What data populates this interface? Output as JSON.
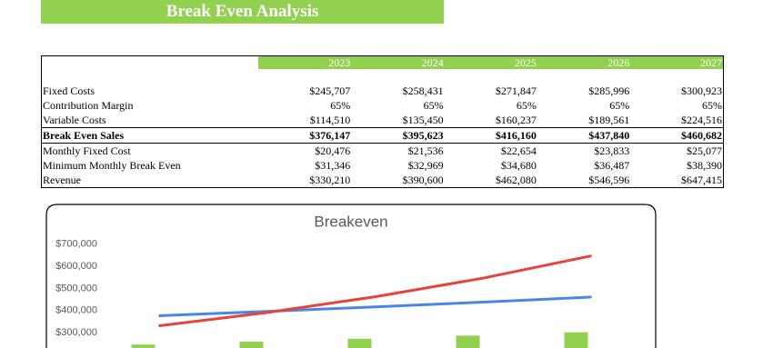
{
  "header": {
    "title": "Break Even Analysis"
  },
  "table": {
    "years": [
      "2023",
      "2024",
      "2025",
      "2026",
      "2027"
    ],
    "rows": [
      {
        "label": "Fixed Costs",
        "values": [
          "$245,707",
          "$258,431",
          "$271,847",
          "$285,996",
          "$300,923"
        ]
      },
      {
        "label": "Contribution Margin",
        "values": [
          "65%",
          "65%",
          "65%",
          "65%",
          "65%"
        ]
      },
      {
        "label": "Variable Costs",
        "values": [
          "$114,510",
          "$135,450",
          "$160,237",
          "$189,561",
          "$224,516"
        ]
      },
      {
        "label": "Break Even Sales",
        "values": [
          "$376,147",
          "$395,623",
          "$416,160",
          "$437,840",
          "$460,682"
        ],
        "bold": true
      },
      {
        "label": "Monthly Fixed Cost",
        "values": [
          "$20,476",
          "$21,536",
          "$22,654",
          "$23,833",
          "$25,077"
        ]
      },
      {
        "label": "Minimum Monthly Break Even",
        "values": [
          "$31,346",
          "$32,969",
          "$34,680",
          "$36,487",
          "$38,390"
        ]
      },
      {
        "label": "Revenue",
        "values": [
          "$330,210",
          "$390,600",
          "$462,080",
          "$546,596",
          "$647,415"
        ]
      }
    ]
  },
  "chart_data": {
    "type": "combo",
    "title": "Breakeven",
    "categories": [
      null,
      null,
      null,
      null,
      null
    ],
    "series": [
      {
        "type": "bar",
        "color": "#92d050",
        "values": [
          245707,
          258431,
          271847,
          285996,
          300923
        ]
      },
      {
        "type": "line",
        "color": "#4a86e8",
        "values": [
          376147,
          395623,
          416160,
          437840,
          460682
        ]
      },
      {
        "type": "line",
        "color": "#e8433a",
        "values": [
          330210,
          390600,
          462080,
          546596,
          647415
        ]
      }
    ],
    "ylim": [
      230000,
      750000
    ],
    "yticks": [
      {
        "value": 300000,
        "label": "$300,000"
      },
      {
        "value": 400000,
        "label": "$400,000"
      },
      {
        "value": 500000,
        "label": "$500,000"
      },
      {
        "value": 600000,
        "label": "$600,000"
      },
      {
        "value": 700000,
        "label": "$700,000"
      }
    ]
  }
}
